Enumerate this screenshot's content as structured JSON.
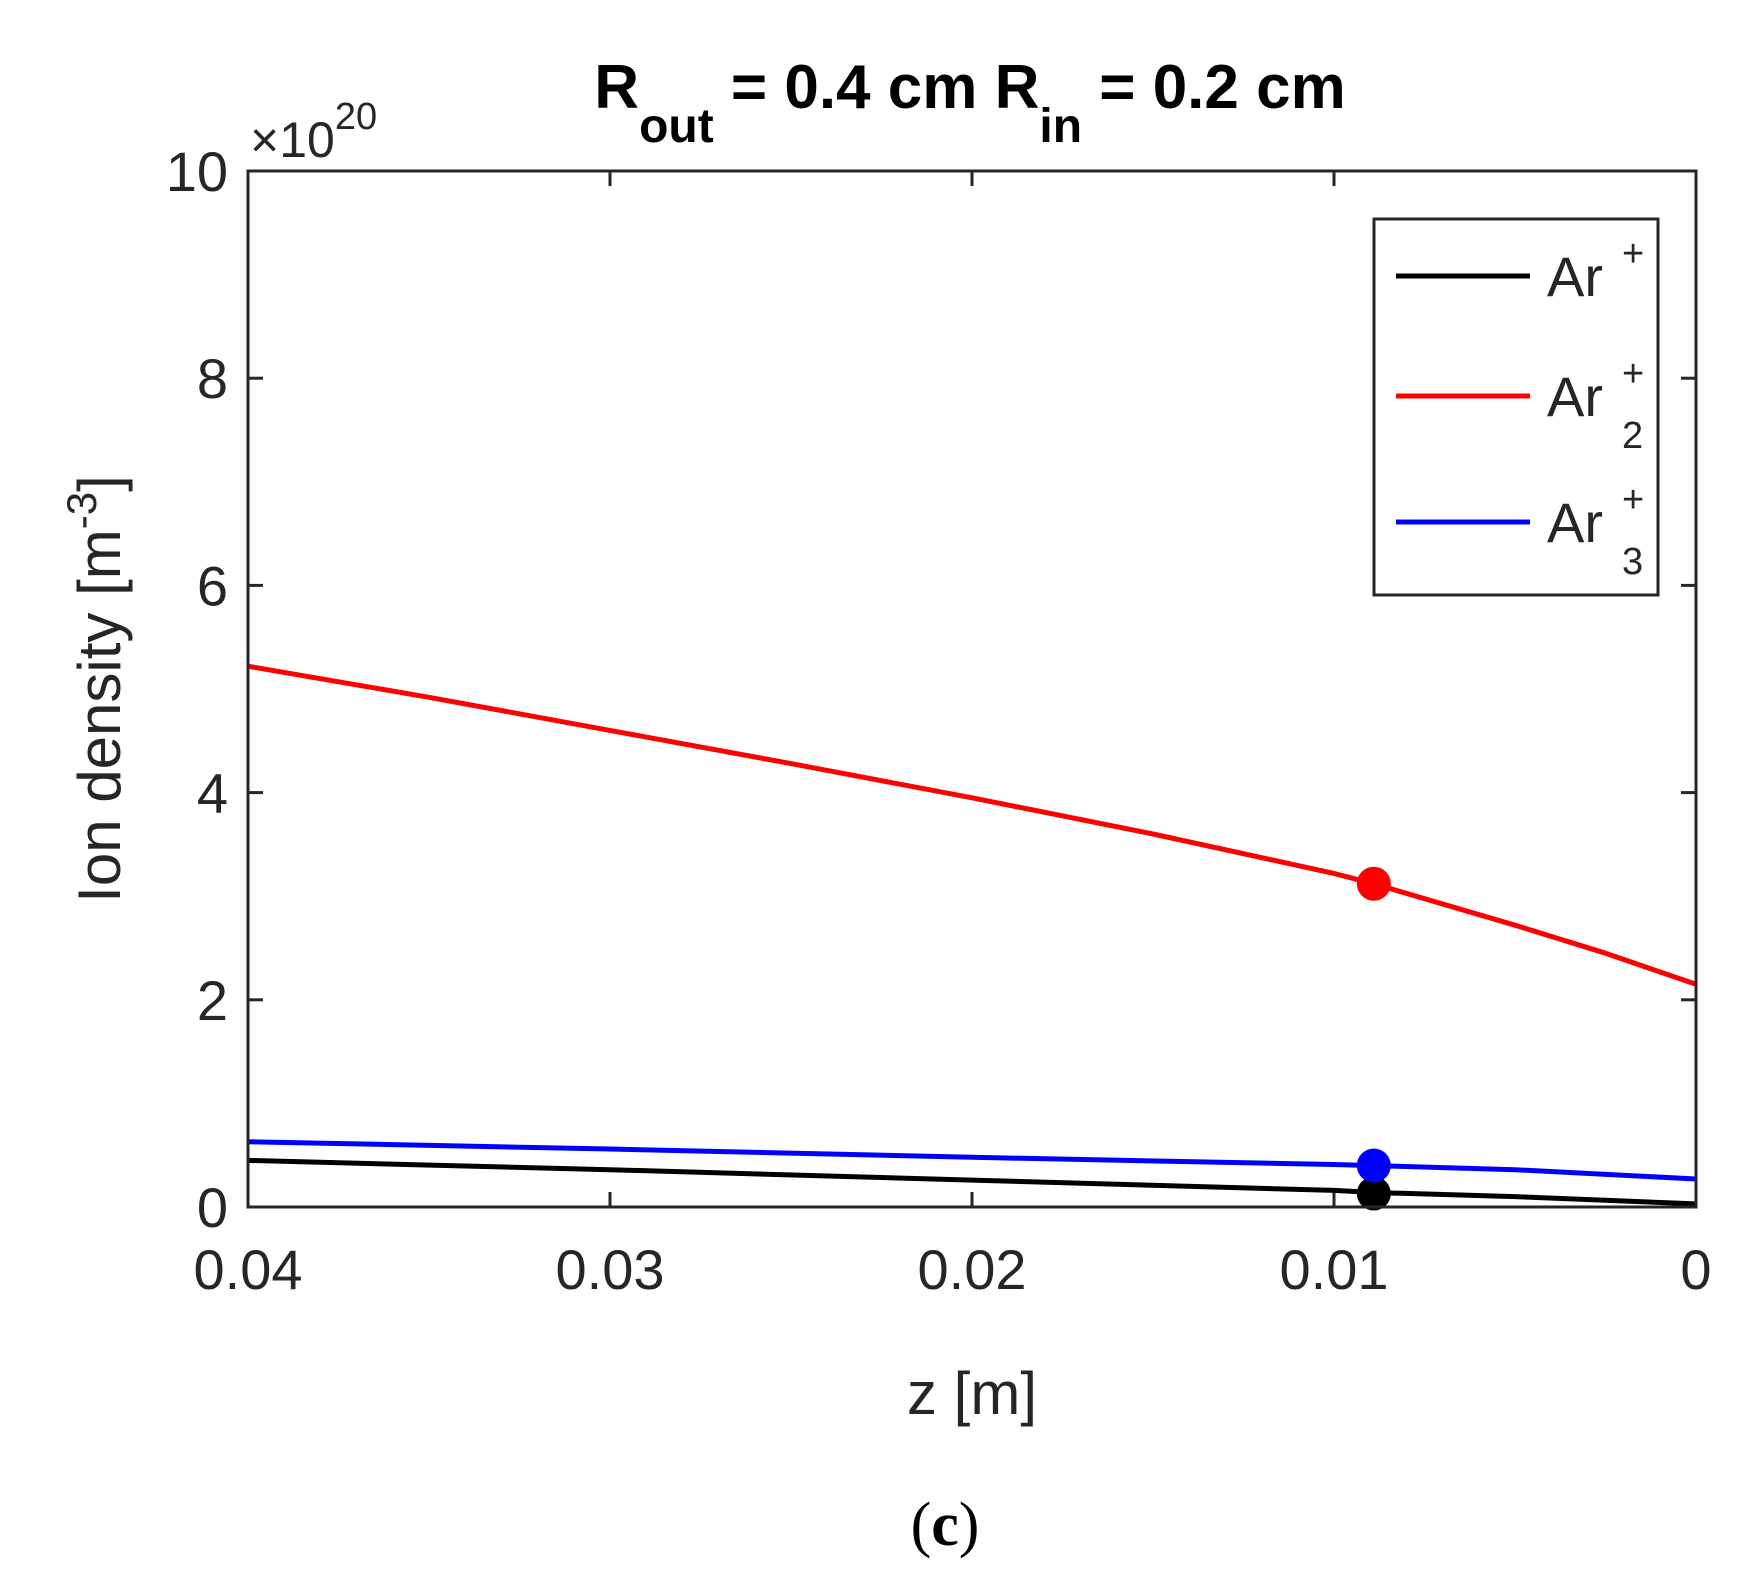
{
  "chart_data": {
    "type": "line",
    "title": {
      "parts": [
        {
          "text": "R",
          "role": "base"
        },
        {
          "text": "out",
          "role": "sub"
        },
        {
          "text": " = 0.4 cm R",
          "role": "base"
        },
        {
          "text": "in",
          "role": "sub"
        },
        {
          "text": " = 0.2 cm",
          "role": "base"
        }
      ]
    },
    "exponent": {
      "prefix": "×10",
      "power": "20"
    },
    "xlabel": "z [m]",
    "ylabel": {
      "base": "Ion density [m",
      "sup": "-3",
      "close": "]"
    },
    "xlim": [
      0.04,
      0
    ],
    "ylim": [
      0,
      10
    ],
    "x_reversed": true,
    "xticks": [
      {
        "value": 0.04,
        "label": "0.04"
      },
      {
        "value": 0.03,
        "label": "0.03"
      },
      {
        "value": 0.02,
        "label": "0.02"
      },
      {
        "value": 0.01,
        "label": "0.01"
      },
      {
        "value": 0,
        "label": "0"
      }
    ],
    "yticks": [
      {
        "value": 0,
        "label": "0"
      },
      {
        "value": 2,
        "label": "2"
      },
      {
        "value": 4,
        "label": "4"
      },
      {
        "value": 6,
        "label": "6"
      },
      {
        "value": 8,
        "label": "8"
      },
      {
        "value": 10,
        "label": "10"
      }
    ],
    "legend_position": "top-right",
    "series": [
      {
        "name": "Ar+",
        "legend": {
          "base": "Ar",
          "sup": "+",
          "sub": ""
        },
        "color": "#000000",
        "x": [
          0.04,
          0.03,
          0.02,
          0.01,
          0.0089,
          0.005,
          0
        ],
        "y": [
          0.45,
          0.36,
          0.26,
          0.16,
          0.14,
          0.1,
          0.03
        ],
        "marker": {
          "x": 0.0089,
          "y": 0.13
        }
      },
      {
        "name": "Ar2+",
        "legend": {
          "base": "Ar",
          "sup": "+",
          "sub": "2"
        },
        "color": "#ff0000",
        "x": [
          0.04,
          0.035,
          0.03,
          0.025,
          0.02,
          0.015,
          0.01,
          0.0089,
          0.005,
          0.0025,
          0
        ],
        "y": [
          5.22,
          4.92,
          4.6,
          4.28,
          3.95,
          3.6,
          3.22,
          3.12,
          2.72,
          2.45,
          2.15
        ],
        "marker": {
          "x": 0.0089,
          "y": 3.12
        }
      },
      {
        "name": "Ar3+",
        "legend": {
          "base": "Ar",
          "sup": "+",
          "sub": "3"
        },
        "color": "#0000ff",
        "x": [
          0.04,
          0.03,
          0.02,
          0.01,
          0.0089,
          0.005,
          0
        ],
        "y": [
          0.63,
          0.56,
          0.48,
          0.41,
          0.4,
          0.36,
          0.27
        ],
        "marker": {
          "x": 0.0089,
          "y": 0.4
        }
      }
    ]
  },
  "caption": {
    "open": "(",
    "letter": "c",
    "close": ")"
  }
}
